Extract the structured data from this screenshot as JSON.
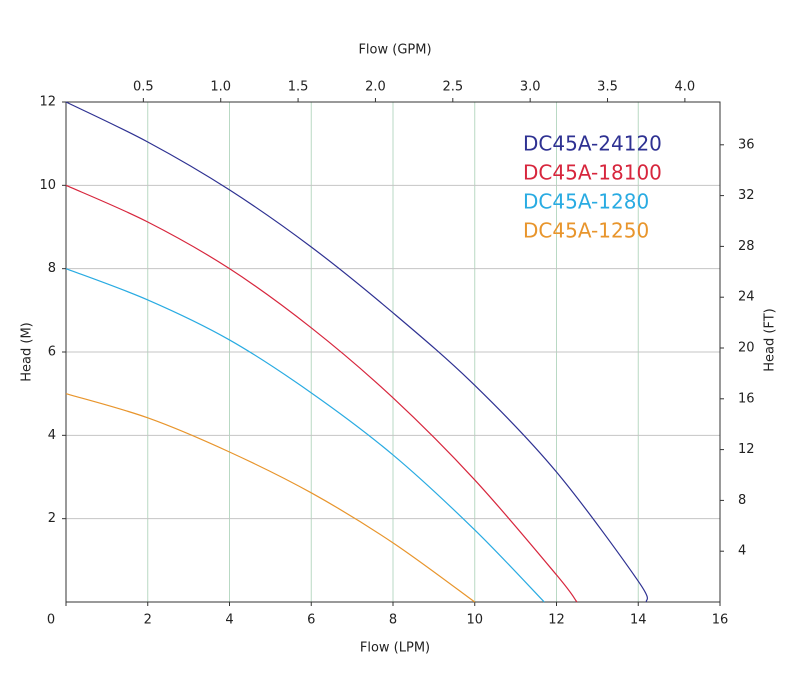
{
  "chart_data": {
    "type": "line",
    "x_label": "Flow (LPM)",
    "x2_label": "Flow (GPM)",
    "y_label": "Head (M)",
    "y2_label": "Head (FT)",
    "xlim": [
      0,
      16
    ],
    "xticks": [
      0,
      2,
      4,
      6,
      8,
      10,
      12,
      14,
      16
    ],
    "x2lim": [
      0,
      4.227
    ],
    "x2ticks": [
      0.5,
      {
        "value": 1,
        "label": "1.0"
      },
      1.5,
      {
        "value": 2,
        "label": "2.0"
      },
      2.5,
      {
        "value": 3,
        "label": "3.0"
      },
      3.5,
      {
        "value": 4,
        "label": "4.0"
      }
    ],
    "ylim": [
      0,
      12
    ],
    "yticks": [
      2,
      4,
      6,
      8,
      10,
      12
    ],
    "y2lim": [
      0,
      39.37
    ],
    "y2ticks": [
      4,
      8,
      12,
      16,
      20,
      24,
      28,
      32,
      36
    ],
    "grid": true,
    "legend": "top-right",
    "series": [
      {
        "name": "DC45A-24120",
        "color": "#2e3192",
        "x": [
          0,
          2,
          4,
          6,
          8,
          10,
          12,
          14,
          14.2
        ],
        "values": [
          12,
          11.04,
          9.89,
          8.52,
          6.94,
          5.2,
          3.12,
          0.5,
          0
        ]
      },
      {
        "name": "DC45A-18100",
        "color": "#d7263d",
        "x": [
          0,
          2,
          4,
          6,
          8,
          10,
          12,
          12.5
        ],
        "values": [
          10,
          9.12,
          8.0,
          6.58,
          4.9,
          2.93,
          0.65,
          0
        ]
      },
      {
        "name": "DC45A-1280",
        "color": "#29abe2",
        "x": [
          0,
          2,
          4,
          6,
          8,
          10,
          11.7
        ],
        "values": [
          8,
          7.25,
          6.29,
          5.02,
          3.53,
          1.73,
          0
        ]
      },
      {
        "name": "DC45A-1250",
        "color": "#e8952c",
        "x": [
          0,
          2,
          4,
          6,
          8,
          10
        ],
        "values": [
          5,
          4.42,
          3.6,
          2.62,
          1.42,
          0
        ]
      }
    ]
  }
}
